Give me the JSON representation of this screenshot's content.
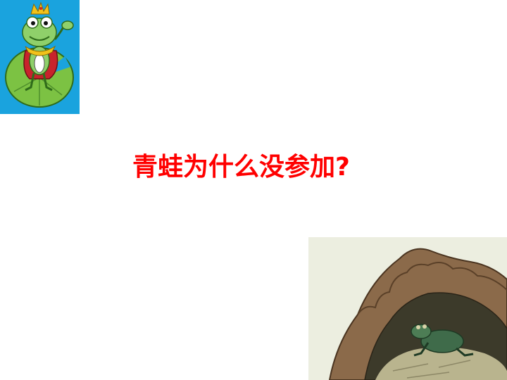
{
  "slide": {
    "title": "青蛙为什么没参加?"
  },
  "images": {
    "top_left": "cartoon-frog-on-lily-pad",
    "bottom_right": "frog-in-well-illustration"
  },
  "colors": {
    "title": "#ff0000",
    "badge_background": "#1aa3de",
    "lily_pad": "#7cc243",
    "frog_body": "#8fd06a",
    "well_rock": "#8b6a4a"
  }
}
